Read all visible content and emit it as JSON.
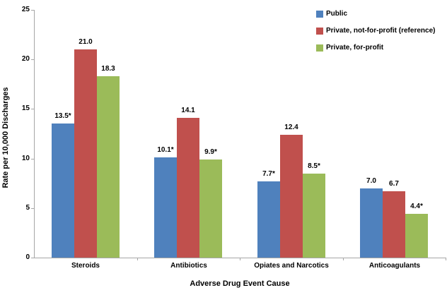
{
  "chart_data": {
    "type": "bar",
    "title": "",
    "xlabel": "Adverse Drug Event Cause",
    "ylabel": "Rate per 10,000 Discharges",
    "categories": [
      "Steroids",
      "Antibiotics",
      "Opiates and Narcotics",
      "Anticoagulants"
    ],
    "series": [
      {
        "name": "Public",
        "color": "#4F81BD",
        "values": [
          13.5,
          10.1,
          7.7,
          7.0
        ],
        "value_labels": [
          "13.5*",
          "10.1*",
          "7.7*",
          "7.0"
        ]
      },
      {
        "name": "Private, not-for-profit (reference)",
        "color": "#C0504D",
        "values": [
          21.0,
          14.1,
          12.4,
          6.7
        ],
        "value_labels": [
          "21.0",
          "14.1",
          "12.4",
          "6.7"
        ]
      },
      {
        "name": "Private, for-profit",
        "color": "#9BBB59",
        "values": [
          18.3,
          9.9,
          8.5,
          4.4
        ],
        "value_labels": [
          "18.3",
          "9.9*",
          "8.5*",
          "4.4*"
        ]
      }
    ],
    "ylim": [
      0,
      25
    ],
    "yticks": [
      0,
      5,
      10,
      15,
      20,
      25
    ],
    "grid": false,
    "legend_position": "top-right",
    "axis_color": "#A6A6A6",
    "text_color": "#000000",
    "footnote_marker_meaning": "*"
  }
}
